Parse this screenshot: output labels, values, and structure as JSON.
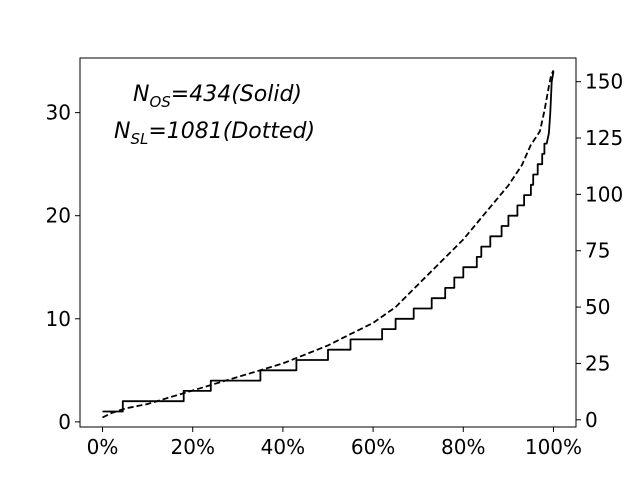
{
  "chart_data": {
    "type": "line",
    "title": "",
    "xlabel": "",
    "ylabel": "",
    "xlim": [
      -0.05,
      1.05
    ],
    "y_left_lim": [
      -0.5,
      35.3
    ],
    "y_right_lim": [
      -3.2,
      160.5
    ],
    "x_ticks": [
      0,
      0.2,
      0.4,
      0.6,
      0.8,
      1.0
    ],
    "x_tick_labels": [
      "0%",
      "20%",
      "40%",
      "60%",
      "80%",
      "100%"
    ],
    "y_left_ticks": [
      0,
      10,
      20,
      30
    ],
    "y_left_tick_labels": [
      "0",
      "10",
      "20",
      "30"
    ],
    "y_right_ticks": [
      0,
      25,
      50,
      75,
      100,
      125,
      150
    ],
    "y_right_tick_labels": [
      "0",
      "25",
      "50",
      "75",
      "100",
      "125",
      "150"
    ],
    "grid": false,
    "annotations": [
      {
        "main": "N",
        "sub": "OS",
        "rest": "=434(Solid)"
      },
      {
        "main": "N",
        "sub": "SL",
        "rest": "=1081(Dotted)"
      }
    ],
    "series": [
      {
        "axis": "left",
        "style": "solid",
        "color": "#000000",
        "step": true,
        "x": [
          0,
          0.045,
          0.045,
          0.18,
          0.18,
          0.24,
          0.24,
          0.35,
          0.35,
          0.43,
          0.43,
          0.5,
          0.5,
          0.55,
          0.55,
          0.62,
          0.62,
          0.65,
          0.65,
          0.69,
          0.69,
          0.73,
          0.73,
          0.76,
          0.76,
          0.78,
          0.78,
          0.8,
          0.8,
          0.83,
          0.83,
          0.84,
          0.84,
          0.86,
          0.86,
          0.885,
          0.885,
          0.9,
          0.9,
          0.92,
          0.92,
          0.935,
          0.935,
          0.95,
          0.95,
          0.955,
          0.955,
          0.965,
          0.965,
          0.975,
          0.975,
          0.98,
          0.98,
          0.985,
          0.99,
          0.993,
          0.996,
          1.0
        ],
        "y": [
          1,
          1,
          2,
          2,
          3,
          3,
          4,
          4,
          5,
          5,
          6,
          6,
          7,
          7,
          8,
          8,
          9,
          9,
          10,
          10,
          11,
          11,
          12,
          12,
          13,
          13,
          14,
          14,
          15,
          15,
          16,
          16,
          17,
          17,
          18,
          18,
          19,
          19,
          20,
          20,
          21,
          21,
          22,
          22,
          23,
          23,
          24,
          24,
          25,
          25,
          26,
          26,
          27,
          27,
          28,
          30,
          33,
          34
        ]
      },
      {
        "axis": "right",
        "style": "dashed",
        "color": "#000000",
        "step": false,
        "x": [
          0,
          0.02,
          0.05,
          0.1,
          0.15,
          0.2,
          0.25,
          0.3,
          0.35,
          0.4,
          0.45,
          0.5,
          0.55,
          0.6,
          0.65,
          0.7,
          0.75,
          0.8,
          0.85,
          0.9,
          0.93,
          0.95,
          0.97,
          0.98,
          0.99,
          0.995,
          1.0
        ],
        "y": [
          1,
          3,
          5,
          7,
          10,
          13,
          16,
          19,
          22,
          25,
          29,
          33,
          38,
          43,
          50,
          60,
          70,
          80,
          92,
          104,
          113,
          122,
          128,
          137,
          148,
          153,
          155
        ]
      }
    ]
  }
}
